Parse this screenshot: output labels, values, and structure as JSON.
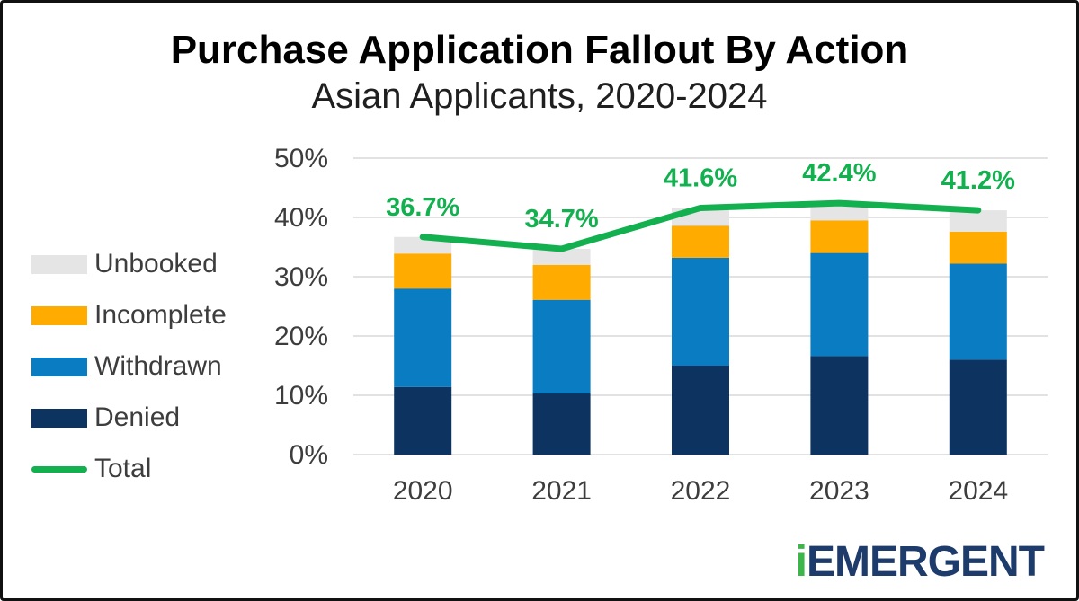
{
  "header": {
    "title": "Purchase Application Fallout By Action",
    "subtitle": "Asian Applicants, 2020-2024"
  },
  "legend": {
    "items": [
      {
        "label": "Unbooked",
        "color": "#e5e5e5",
        "type": "box"
      },
      {
        "label": "Incomplete",
        "color": "#ffab00",
        "type": "box"
      },
      {
        "label": "Withdrawn",
        "color": "#0a7dc2",
        "type": "box"
      },
      {
        "label": "Denied",
        "color": "#0d3460",
        "type": "box"
      },
      {
        "label": "Total",
        "color": "#13b04f",
        "type": "line"
      }
    ]
  },
  "chart_data": {
    "type": "bar",
    "subtype": "stacked-bars-with-total-line",
    "categories": [
      "2020",
      "2021",
      "2022",
      "2023",
      "2024"
    ],
    "series": [
      {
        "name": "Denied",
        "color": "#0d3460",
        "values": [
          11.4,
          10.3,
          15.0,
          16.6,
          16.0
        ]
      },
      {
        "name": "Withdrawn",
        "color": "#0a7dc2",
        "values": [
          16.6,
          15.8,
          18.2,
          17.4,
          16.2
        ]
      },
      {
        "name": "Incomplete",
        "color": "#ffab00",
        "values": [
          5.9,
          5.9,
          5.4,
          5.5,
          5.4
        ]
      },
      {
        "name": "Unbooked",
        "color": "#e5e5e5",
        "values": [
          2.8,
          2.7,
          3.0,
          2.9,
          3.6
        ]
      }
    ],
    "line": {
      "name": "Total",
      "color": "#13b04f",
      "values": [
        36.7,
        34.7,
        41.6,
        42.4,
        41.2
      ],
      "labels": [
        "36.7%",
        "34.7%",
        "41.6%",
        "42.4%",
        "41.2%"
      ]
    },
    "y_ticks": [
      "0%",
      "10%",
      "20%",
      "30%",
      "40%",
      "50%"
    ],
    "ylim": [
      0,
      50
    ],
    "grid": true,
    "gridline_color": "#d9d9d9",
    "axis_text_color": "#3d3d3d",
    "legend_position": "left"
  },
  "logo": {
    "prefix": "i",
    "text": "EMERGENT",
    "prefix_color": "#3cb54a",
    "text_color": "#1d3c6c"
  }
}
